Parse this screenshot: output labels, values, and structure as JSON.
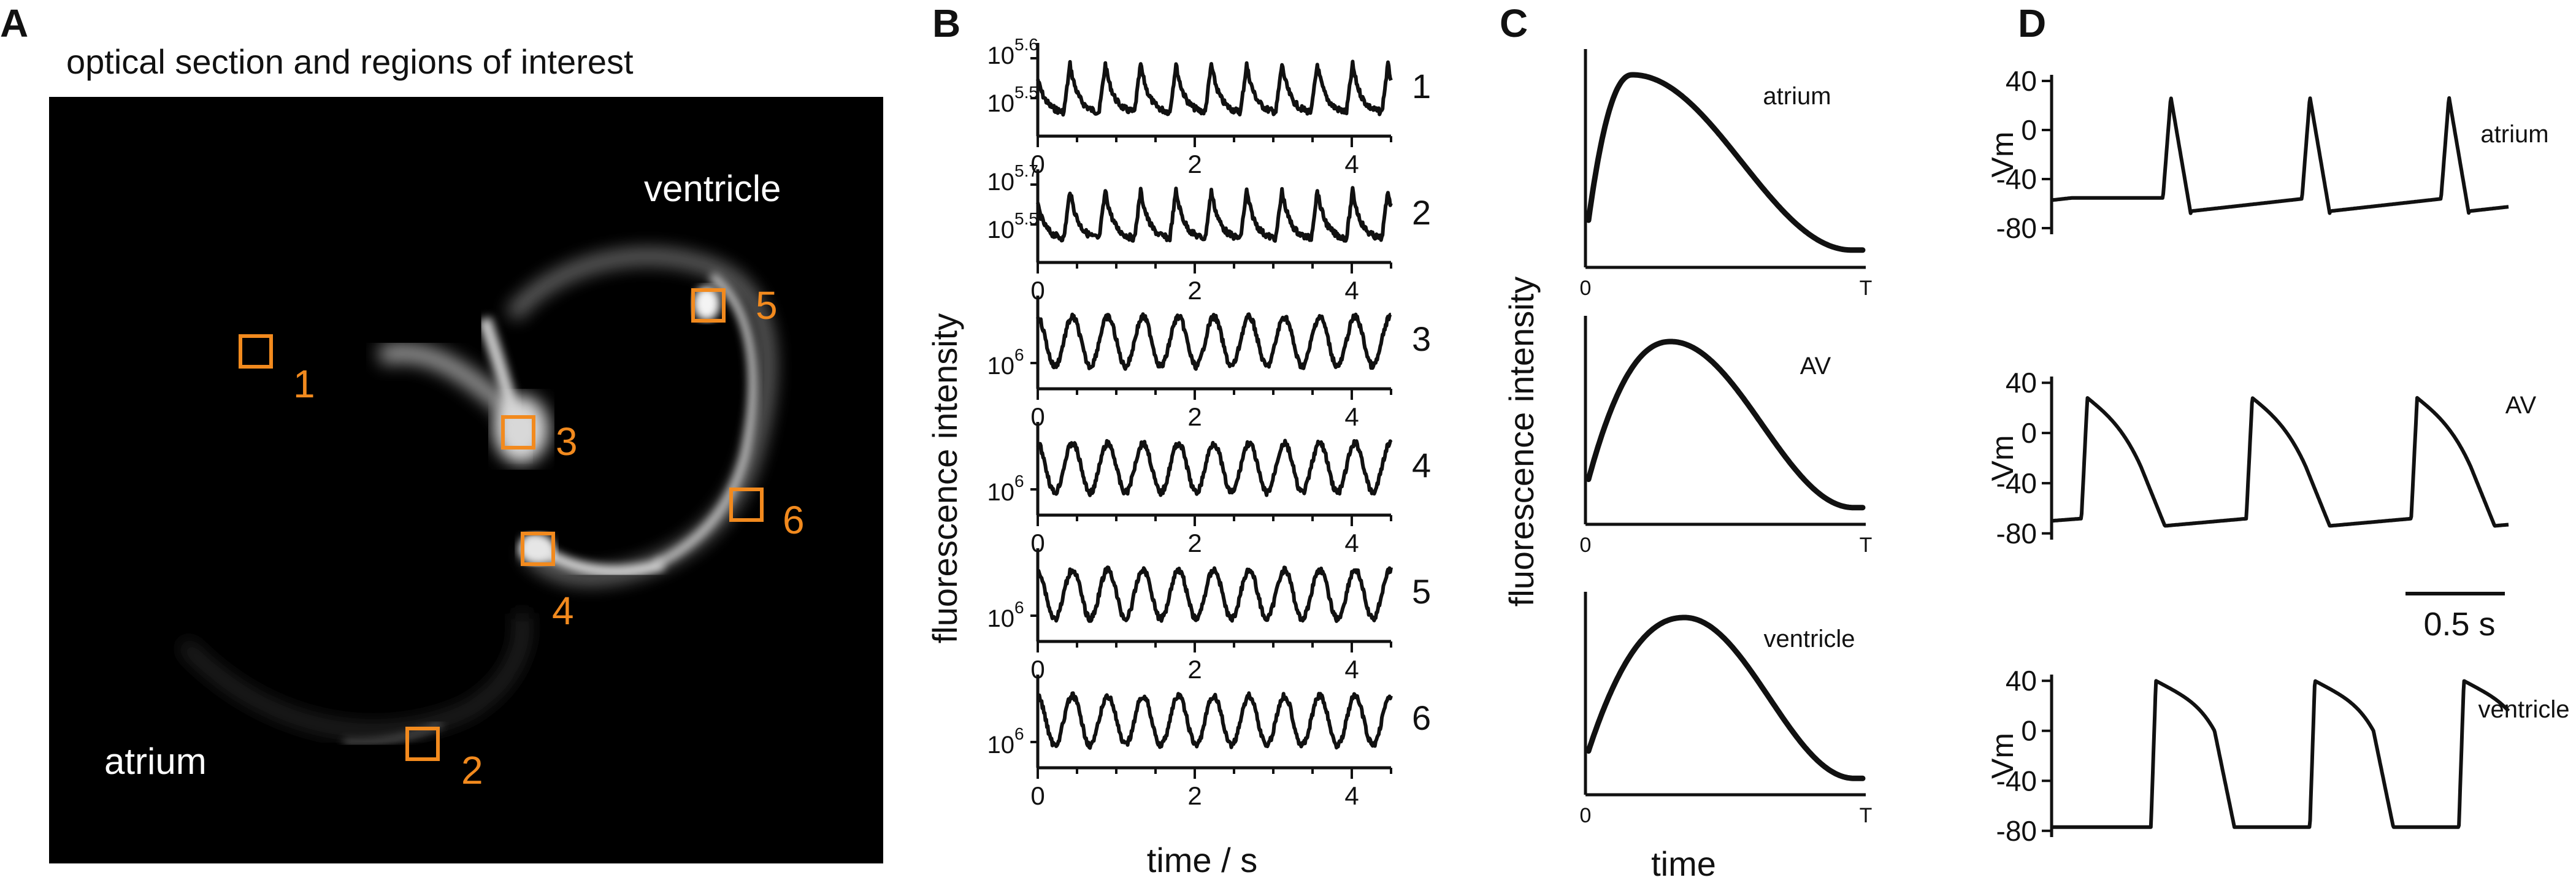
{
  "colors": {
    "roi": "#f28a1e",
    "image_bg": "#000000",
    "trace": "#111111"
  },
  "panels": {
    "A": {
      "letter": "A",
      "title": "optical section and regions of interest",
      "labels": {
        "ventricle": "ventricle",
        "atrium": "atrium"
      },
      "rois": [
        "1",
        "2",
        "3",
        "4",
        "5",
        "6"
      ]
    },
    "B": {
      "letter": "B",
      "ylabel": "fluorescence intensity",
      "xlabel": "time / s",
      "xticks": [
        "0",
        "2",
        "4"
      ],
      "xlim": [
        0,
        4.5
      ],
      "traces": [
        {
          "id": "1",
          "ytick_top": {
            "base": "10",
            "exp": "5.6"
          },
          "ytick_bottom": {
            "base": "10",
            "exp": "5.5"
          },
          "cycles": 10,
          "shape": "spike"
        },
        {
          "id": "2",
          "ytick_top": {
            "base": "10",
            "exp": "5.7"
          },
          "ytick_bottom": {
            "base": "10",
            "exp": "5.5"
          },
          "cycles": 10,
          "shape": "spike"
        },
        {
          "id": "3",
          "ytick_bottom": {
            "base": "10",
            "exp": "6"
          },
          "cycles": 10,
          "shape": "sine"
        },
        {
          "id": "4",
          "ytick_bottom": {
            "base": "10",
            "exp": "6"
          },
          "cycles": 10,
          "shape": "sine"
        },
        {
          "id": "5",
          "ytick_bottom": {
            "base": "10",
            "exp": "6"
          },
          "cycles": 10,
          "shape": "sine"
        },
        {
          "id": "6",
          "ytick_bottom": {
            "base": "10",
            "exp": "6"
          },
          "cycles": 10,
          "shape": "sine"
        }
      ]
    },
    "C": {
      "letter": "C",
      "ylabel": "fluorescence intensity",
      "xlabel": "time",
      "xticks": [
        "0",
        "T"
      ],
      "curves": [
        {
          "label": "atrium",
          "peak_frac": 0.16,
          "rise": 1.6
        },
        {
          "label": "AV",
          "peak_frac": 0.3,
          "rise": 1.2
        },
        {
          "label": "ventricle",
          "peak_frac": 0.35,
          "rise": 1.0
        }
      ]
    },
    "D": {
      "letter": "D",
      "ylabel": "Vm",
      "yticks": [
        "40",
        "0",
        "-40",
        "-80"
      ],
      "ylim": [
        -85,
        45
      ],
      "scalebar": "0.5 s",
      "scalebar_seconds": 0.5,
      "window_seconds": 2.3,
      "traces": [
        {
          "label": "atrium",
          "beats_at": [
            0.6,
            1.3,
            2.0
          ],
          "peak": 27,
          "rest": -60,
          "shape": "atrium"
        },
        {
          "label": "AV",
          "beats_at": [
            0.15,
            0.98,
            1.81
          ],
          "peak": 28,
          "rest": -72,
          "shape": "av"
        },
        {
          "label": "ventricle",
          "beats_at": [
            0.5,
            1.3,
            2.05
          ],
          "peak": 40,
          "rest": -77,
          "shape": "ventricle"
        }
      ]
    }
  }
}
